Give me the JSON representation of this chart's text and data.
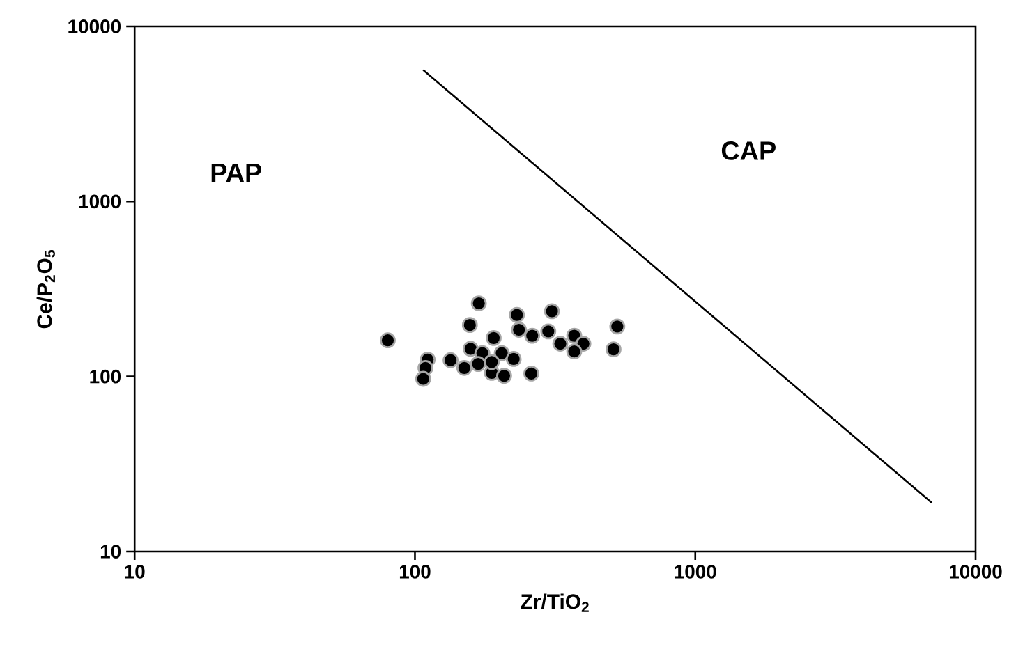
{
  "chart_data": {
    "type": "scatter",
    "xlabel": "Zr/TiO$_{2}$",
    "ylabel": "Ce/P$_{2}$O$_{5}$",
    "log": "xy",
    "xlim": [
      10,
      10000
    ],
    "ylim": [
      10,
      10000
    ],
    "xticks": [
      10,
      100,
      1000,
      10000
    ],
    "yticks": [
      10,
      100,
      1000,
      10000
    ],
    "grid": false,
    "annotations": [
      "PAP",
      "CAP"
    ],
    "series": [
      {
        "type": "scatter",
        "color": "#000000",
        "marker": "circle",
        "x": [
          80,
          169,
          157,
          231,
          308,
          235,
          262,
          299,
          330,
          370,
          399,
          370,
          527,
          511,
          191,
          158,
          174,
          204,
          225,
          134,
          111,
          109,
          107,
          150,
          168,
          188,
          208,
          260,
          188
        ],
        "values": [
          161,
          262,
          197,
          225,
          236,
          185,
          171,
          181,
          154,
          171,
          154,
          139,
          193,
          143,
          166,
          144,
          136,
          136,
          126,
          124,
          125,
          112,
          97,
          112,
          118,
          105,
          101,
          104,
          121
        ]
      },
      {
        "type": "line",
        "color": "#000000",
        "line_style": "solid",
        "marker": "none",
        "x": [
          107,
          6980
        ],
        "values": [
          5640,
          19
        ]
      }
    ]
  }
}
